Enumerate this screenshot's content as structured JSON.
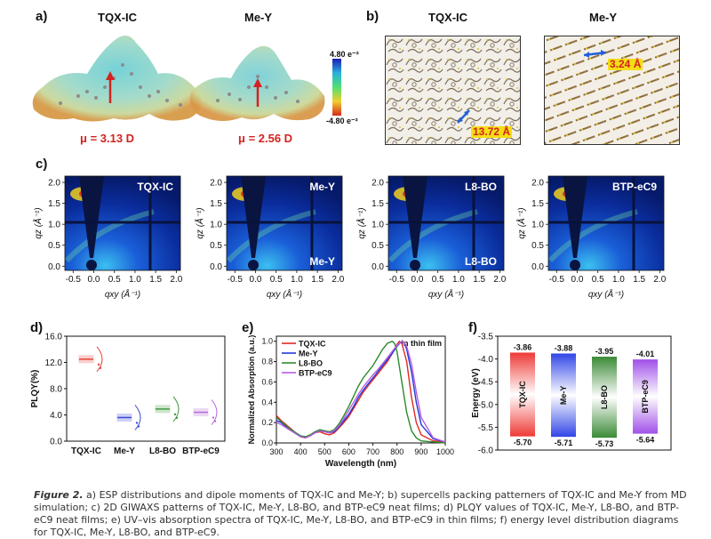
{
  "panel_letters": {
    "a": "a)",
    "b": "b)",
    "c": "c)",
    "d": "d)",
    "e": "e)",
    "f": "f)"
  },
  "panel_a": {
    "left_title": "TQX-IC",
    "right_title": "Me-Y",
    "left_dipole": "μ = 3.13 D",
    "right_dipole": "μ = 2.56 D",
    "colorbar_top": "4.80 e⁻²",
    "colorbar_bottom": "-4.80 e⁻²"
  },
  "panel_b": {
    "left_title": "TQX-IC",
    "right_title": "Me-Y",
    "left_distance": "13.72 Å",
    "right_distance": "3.24 Å"
  },
  "panel_c": {
    "titles": [
      "TQX-IC",
      "Me-Y",
      "L8-BO",
      "BTP-eC9"
    ],
    "bottom_labels": [
      "",
      "Me-Y",
      "L8-BO",
      ""
    ],
    "y_ticks": [
      "2.0",
      "1.5",
      "1.0",
      "0.5",
      "0.0"
    ],
    "x_ticks": [
      "-0.5",
      "0.0",
      "0.5",
      "1.0",
      "1.5",
      "2.0"
    ],
    "ylabel": "qz (Å⁻¹)",
    "xlabel": "qxy (Å⁻¹)"
  },
  "chart_data": [
    {
      "type": "box",
      "panel": "d",
      "ylabel": "PLQY(%)",
      "categories": [
        "TQX-IC",
        "Me-Y",
        "L8-BO",
        "BTP-eC9"
      ],
      "values": [
        12.5,
        3.6,
        4.9,
        4.4
      ],
      "colors": [
        "#e8413a",
        "#3b4bd6",
        "#3f9b3f",
        "#b56ad8"
      ],
      "yticks": [
        "0.0",
        "4.0",
        "8.0",
        "12.0",
        "16.0"
      ],
      "ylim": [
        0,
        16
      ]
    },
    {
      "type": "line",
      "panel": "e",
      "title": "In thin film",
      "xlabel": "Wavelength (nm)",
      "ylabel": "Normalized Absorption (a.u.)",
      "xlim": [
        300,
        1000
      ],
      "ylim": [
        0,
        1.05
      ],
      "xticks": [
        "300",
        "400",
        "500",
        "600",
        "700",
        "800",
        "900",
        "1000"
      ],
      "yticks": [
        "0.0",
        "0.2",
        "0.4",
        "0.6",
        "0.8",
        "1.0"
      ],
      "series": [
        {
          "name": "TQX-IC",
          "color": "#e02a22",
          "x": [
            300,
            320,
            340,
            360,
            380,
            400,
            420,
            440,
            460,
            480,
            500,
            520,
            540,
            560,
            580,
            600,
            620,
            640,
            660,
            680,
            700,
            720,
            740,
            760,
            780,
            800,
            810,
            820,
            840,
            860,
            880,
            900,
            950,
            1000
          ],
          "y": [
            0.27,
            0.22,
            0.18,
            0.14,
            0.1,
            0.06,
            0.05,
            0.07,
            0.1,
            0.11,
            0.09,
            0.08,
            0.1,
            0.15,
            0.2,
            0.26,
            0.34,
            0.42,
            0.5,
            0.56,
            0.62,
            0.68,
            0.74,
            0.8,
            0.88,
            0.97,
            1.0,
            0.98,
            0.8,
            0.45,
            0.2,
            0.08,
            0.02,
            0.01
          ]
        },
        {
          "name": "Me-Y",
          "color": "#2437d6",
          "x": [
            300,
            320,
            340,
            360,
            380,
            400,
            420,
            440,
            460,
            480,
            500,
            520,
            540,
            560,
            580,
            600,
            620,
            640,
            660,
            680,
            700,
            720,
            740,
            760,
            780,
            800,
            820,
            830,
            840,
            860,
            880,
            900,
            950,
            1000
          ],
          "y": [
            0.22,
            0.2,
            0.16,
            0.13,
            0.1,
            0.07,
            0.06,
            0.07,
            0.1,
            0.12,
            0.11,
            0.1,
            0.11,
            0.16,
            0.22,
            0.28,
            0.36,
            0.45,
            0.52,
            0.58,
            0.64,
            0.7,
            0.76,
            0.82,
            0.88,
            0.95,
            1.0,
            0.99,
            0.92,
            0.7,
            0.4,
            0.18,
            0.04,
            0.01
          ]
        },
        {
          "name": "L8-BO",
          "color": "#2c8a2c",
          "x": [
            300,
            320,
            340,
            360,
            380,
            400,
            420,
            440,
            460,
            480,
            500,
            520,
            540,
            560,
            580,
            600,
            620,
            640,
            660,
            680,
            700,
            720,
            740,
            760,
            780,
            790,
            800,
            820,
            840,
            860,
            880,
            900,
            950,
            1000
          ],
          "y": [
            0.25,
            0.21,
            0.17,
            0.13,
            0.1,
            0.07,
            0.06,
            0.08,
            0.11,
            0.13,
            0.12,
            0.11,
            0.13,
            0.19,
            0.27,
            0.36,
            0.46,
            0.56,
            0.64,
            0.7,
            0.76,
            0.84,
            0.92,
            0.98,
            1.0,
            0.98,
            0.9,
            0.6,
            0.3,
            0.12,
            0.05,
            0.02,
            0.01,
            0.0
          ]
        },
        {
          "name": "BTP-eC9",
          "color": "#b45ee0",
          "x": [
            300,
            320,
            340,
            360,
            380,
            400,
            420,
            440,
            460,
            480,
            500,
            520,
            540,
            560,
            580,
            600,
            620,
            640,
            660,
            680,
            700,
            720,
            740,
            760,
            780,
            800,
            820,
            830,
            840,
            860,
            880,
            900,
            950,
            1000
          ],
          "y": [
            0.2,
            0.18,
            0.15,
            0.12,
            0.09,
            0.06,
            0.05,
            0.07,
            0.1,
            0.12,
            0.11,
            0.1,
            0.12,
            0.17,
            0.24,
            0.32,
            0.4,
            0.48,
            0.55,
            0.61,
            0.67,
            0.72,
            0.78,
            0.84,
            0.9,
            0.96,
            1.0,
            0.99,
            0.95,
            0.78,
            0.5,
            0.25,
            0.05,
            0.01
          ]
        }
      ]
    },
    {
      "type": "energy-level",
      "panel": "f",
      "ylabel": "Energy (eV)",
      "ylim": [
        -6.0,
        -3.5
      ],
      "yticks": [
        "-3.5",
        "-4.0",
        "-4.5",
        "-5.0",
        "-5.5",
        "-6.0"
      ],
      "materials": [
        {
          "name": "TQX-IC",
          "lumo": -3.86,
          "homo": -5.7,
          "lumo_label": "-3.86",
          "homo_label": "-5.70",
          "color": "#ee3a36"
        },
        {
          "name": "Me-Y",
          "lumo": -3.88,
          "homo": -5.71,
          "lumo_label": "-3.88",
          "homo_label": "-5.71",
          "color": "#3146e6"
        },
        {
          "name": "L8-BO",
          "lumo": -3.95,
          "homo": -5.73,
          "lumo_label": "-3.95",
          "homo_label": "-5.73",
          "color": "#3a8a36"
        },
        {
          "name": "BTP-eC9",
          "lumo": -4.01,
          "homo": -5.64,
          "lumo_label": "-4.01",
          "homo_label": "-5.64",
          "color": "#a050e8"
        }
      ]
    }
  ],
  "caption": {
    "label": "Figure 2.",
    "text": " a) ESP distributions and dipole moments of TQX-IC and Me-Y; b) supercells packing patterners of TQX-IC and Me-Y from MD simulation; c) 2D GIWAXS patterns of TQX-IC, Me-Y, L8-BO, and BTP-eC9 neat films; d) PLQY values of TQX-IC, Me-Y, L8-BO, and BTP-eC9 neat films; e) UV–vis absorption spectra of TQX-IC, Me-Y, L8-BO, and BTP-eC9 in thin films; f) energy level distribution diagrams for TQX-IC, Me-Y, L8-BO, and BTP-eC9."
  }
}
